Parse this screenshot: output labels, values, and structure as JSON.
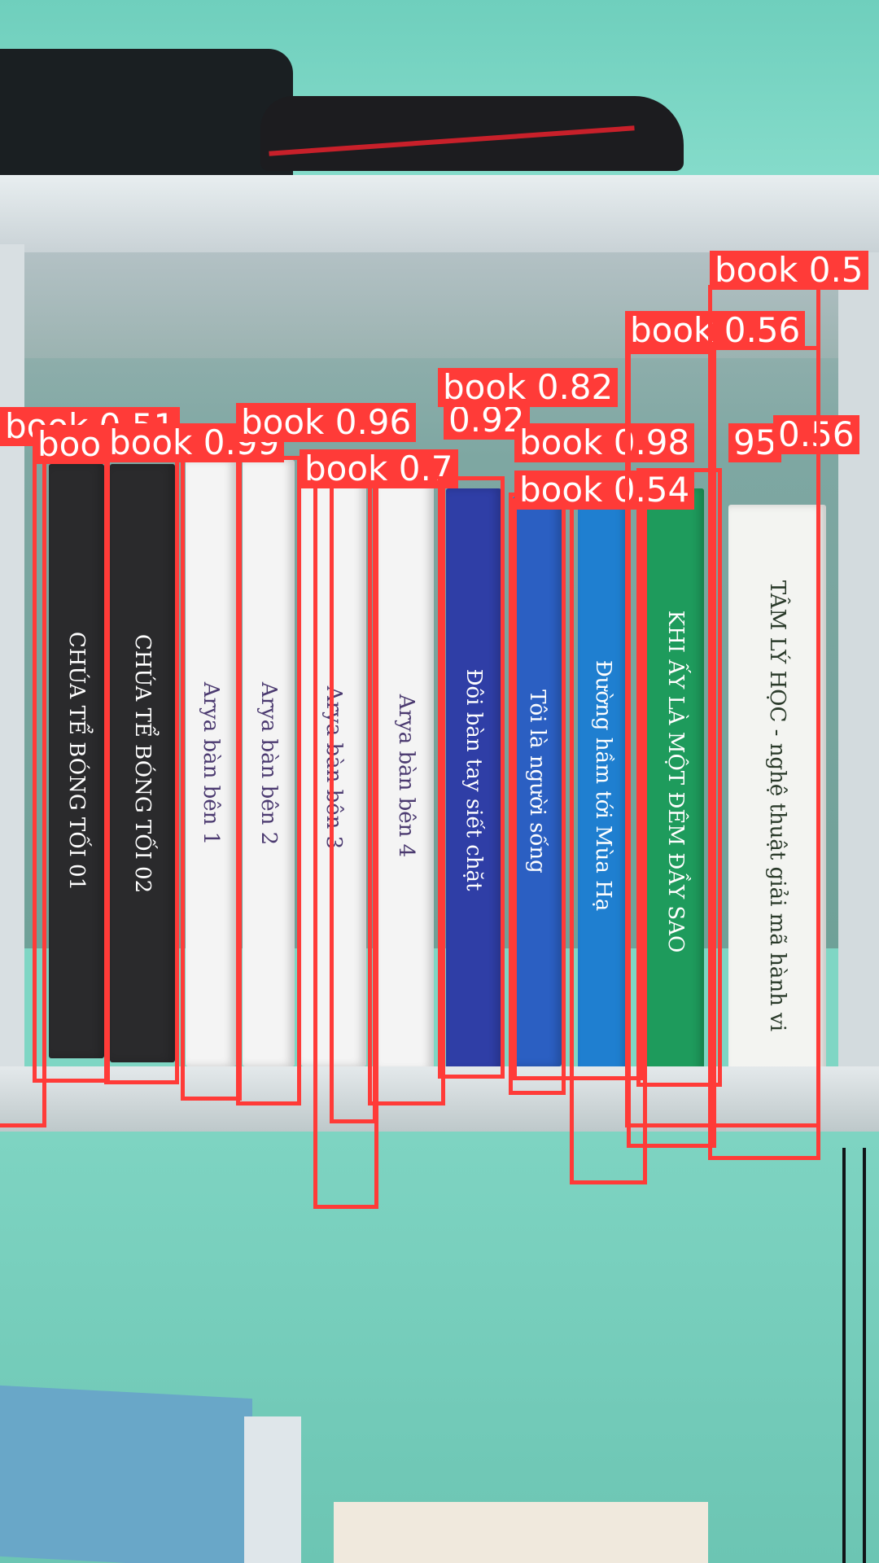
{
  "scene": {
    "books": [
      {
        "spine": "CHÚA TỂ BÓNG TỐI 01",
        "color": "#2a2a2c",
        "text_color": "#ffffff"
      },
      {
        "spine": "CHÚA TỂ BÓNG TỐI 02",
        "color": "#2a2a2c",
        "text_color": "#ffffff"
      },
      {
        "spine": "Arya bàn bên 1",
        "color": "#f4f4f4",
        "text_color": "#4b3a70"
      },
      {
        "spine": "Arya bàn bên 2",
        "color": "#f4f4f4",
        "text_color": "#4b3a70"
      },
      {
        "spine": "Arya bàn bên 3",
        "color": "#f4f4f4",
        "text_color": "#4b3a70"
      },
      {
        "spine": "Arya bàn bên 4",
        "color": "#f4f4f4",
        "text_color": "#4b3a70"
      },
      {
        "spine": "Đôi bàn tay siết chặt",
        "color": "#2f3ea6",
        "text_color": "#ffffff"
      },
      {
        "spine": "Tôi là người sống",
        "color": "#2b5fc2",
        "text_color": "#ffffff"
      },
      {
        "spine": "Đường hầm tới Mùa Hạ",
        "color": "#1f7fd0",
        "text_color": "#ffffff"
      },
      {
        "spine": "KHI ẤY LÀ MỘT ĐÊM ĐẦY SAO",
        "color": "#1e9b5c",
        "text_color": "#ffffff"
      },
      {
        "spine": "TÂM LÝ HỌC - nghệ thuật giải mã hành vi",
        "color": "#f3f4f1",
        "text_color": "#2a3a2a"
      }
    ]
  },
  "detections": [
    {
      "label": "book 0.51"
    },
    {
      "label": "boo"
    },
    {
      "label": "book 0.99"
    },
    {
      "label": "book 0.96"
    },
    {
      "label": "0.92"
    },
    {
      "label": "book 0.7"
    },
    {
      "label": "book 0.82"
    },
    {
      "label": "book 0.98"
    },
    {
      "label": "95"
    },
    {
      "label": "0.56"
    },
    {
      "label": "book 0.54"
    },
    {
      "label": "book 0.56"
    },
    {
      "label": "book 0.5"
    }
  ],
  "colors": {
    "detection": "#ff3b38",
    "label_text": "#ffffff"
  }
}
